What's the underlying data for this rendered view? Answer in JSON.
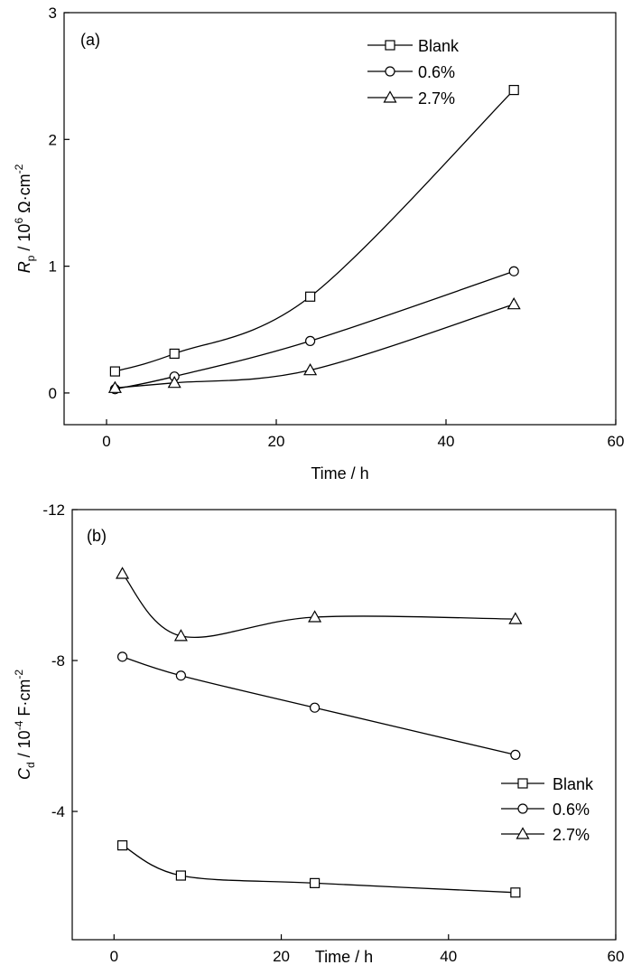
{
  "chart_data": [
    {
      "type": "line",
      "panel_label": "(a)",
      "xlabel": "Time / h",
      "ylabel": {
        "symbol": "R",
        "subscript": "p",
        "unit_prefix": " / 10",
        "exponent": "6",
        "unit": " Ω·cm",
        "unit_exponent": "-2"
      },
      "xlim": [
        -5,
        60
      ],
      "ylim": [
        -0.25,
        3
      ],
      "x_ticks": [
        0,
        20,
        40,
        60
      ],
      "x_tick_labels": [
        "0",
        "20",
        "40",
        "60"
      ],
      "y_ticks": [
        0,
        1,
        2,
        3
      ],
      "y_tick_labels": [
        "0",
        "1",
        "2",
        "3"
      ],
      "legend_position": "top-right",
      "series": [
        {
          "name": "Blank",
          "marker": "square",
          "x": [
            1,
            8,
            24,
            48
          ],
          "y": [
            0.17,
            0.31,
            0.76,
            2.39
          ]
        },
        {
          "name": "0.6%",
          "marker": "circle",
          "x": [
            1,
            8,
            24,
            48
          ],
          "y": [
            0.03,
            0.13,
            0.41,
            0.96
          ]
        },
        {
          "name": "2.7%",
          "marker": "triangle",
          "x": [
            1,
            8,
            24,
            48
          ],
          "y": [
            0.04,
            0.08,
            0.18,
            0.7
          ]
        }
      ]
    },
    {
      "type": "line",
      "panel_label": "(b)",
      "xlabel": "Time / h",
      "ylabel": {
        "symbol": "C",
        "subscript": "d",
        "unit_prefix": " / 10",
        "exponent": "-4",
        "unit": " F·cm",
        "unit_exponent": "-2"
      },
      "xlim": [
        -5,
        60
      ],
      "ylim": [
        -0.6,
        -12
      ],
      "y_inverted": true,
      "x_ticks": [
        0,
        20,
        40,
        60
      ],
      "x_tick_labels": [
        "0",
        "20",
        "40",
        "60"
      ],
      "y_ticks": [
        -4,
        -8,
        -12
      ],
      "y_tick_labels": [
        "-4",
        "-8",
        "-12"
      ],
      "legend_position": "lower-right",
      "series": [
        {
          "name": "Blank",
          "marker": "square",
          "x": [
            1,
            8,
            24,
            48
          ],
          "y": [
            -3.1,
            -2.3,
            -2.1,
            -1.85
          ]
        },
        {
          "name": "0.6%",
          "marker": "circle",
          "x": [
            1,
            8,
            24,
            48
          ],
          "y": [
            -8.1,
            -7.6,
            -6.75,
            -5.5
          ]
        },
        {
          "name": "2.7%",
          "marker": "triangle",
          "x": [
            1,
            8,
            24,
            48
          ],
          "y": [
            -10.3,
            -8.65,
            -9.15,
            -9.1
          ]
        }
      ]
    }
  ]
}
